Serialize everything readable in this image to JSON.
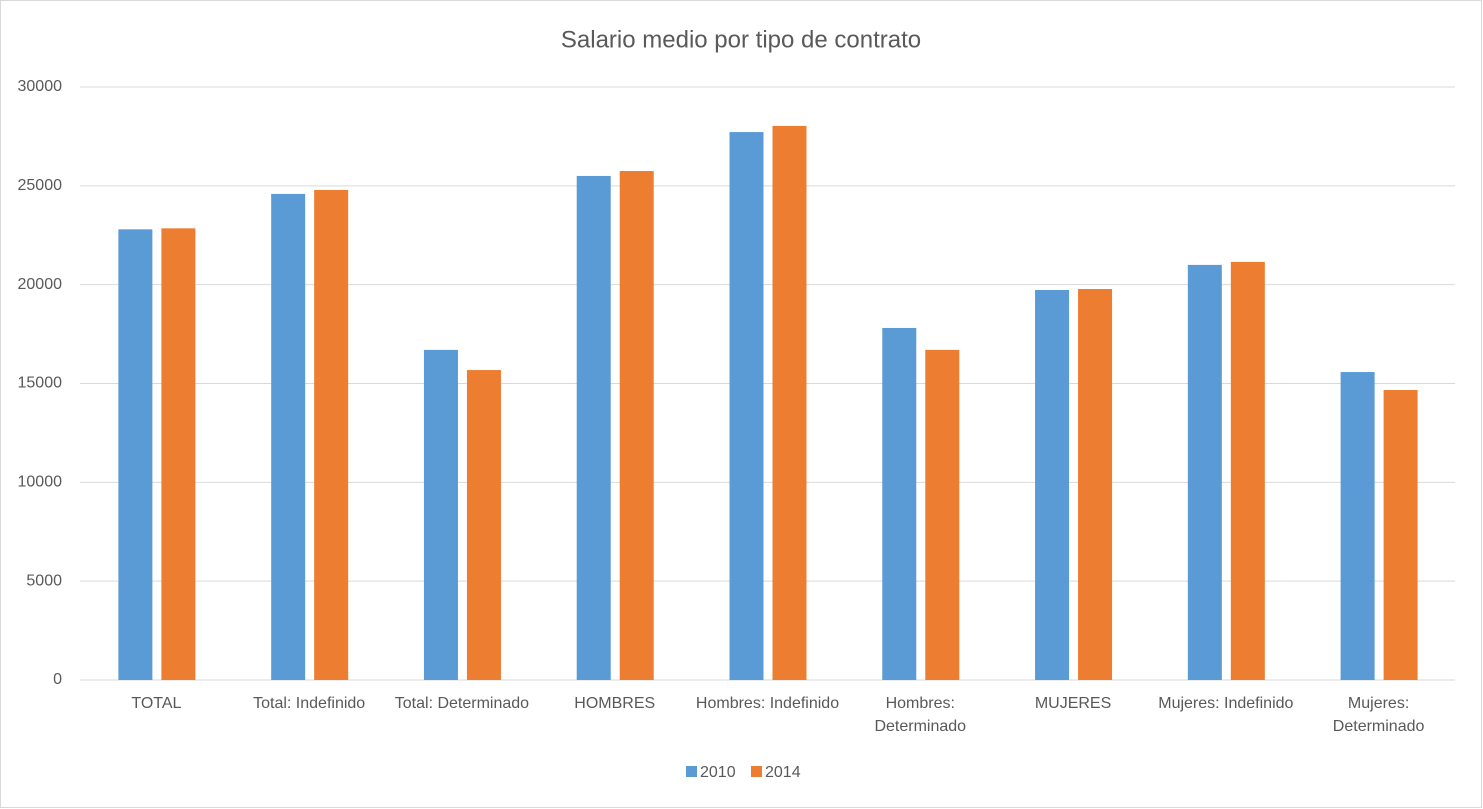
{
  "chart_data": {
    "type": "bar",
    "title": "Salario medio por tipo de contrato",
    "categories": [
      "TOTAL",
      "Total: Indefinido",
      "Total: Determinado",
      "HOMBRES",
      "Hombres: Indefinido",
      "Hombres: Determinado",
      "MUJERES",
      "Mujeres: Indefinido",
      "Mujeres: Determinado"
    ],
    "series": [
      {
        "name": "2010",
        "color": "#5b9bd5",
        "values": [
          22800,
          24590,
          16700,
          25500,
          27720,
          17810,
          19730,
          21000,
          15580
        ]
      },
      {
        "name": "2014",
        "color": "#ed7d31",
        "values": [
          22850,
          24790,
          15680,
          25750,
          28030,
          16700,
          19780,
          21150,
          14670
        ]
      }
    ],
    "ylim": [
      0,
      30000
    ],
    "yticks": [
      0,
      5000,
      10000,
      15000,
      20000,
      25000,
      30000
    ],
    "grid": true,
    "legend": "bottom"
  }
}
